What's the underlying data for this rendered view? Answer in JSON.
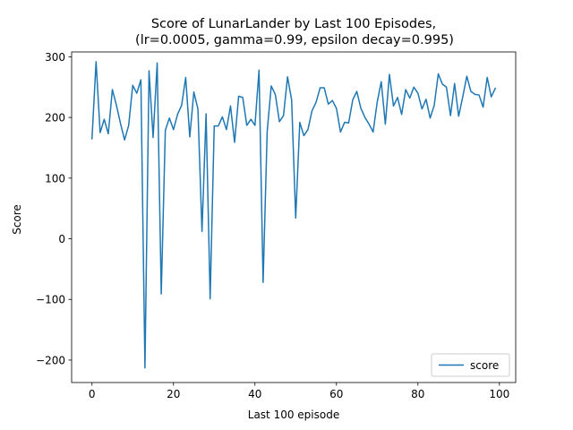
{
  "chart_data": {
    "type": "line",
    "title": "Score of LunarLander by Last 100 Episodes,",
    "subtitle": "(lr=0.0005, gamma=0.99, epsilon decay=0.995)",
    "xlabel": "Last 100 episode",
    "ylabel": "Score",
    "xlim": [
      -5,
      104
    ],
    "ylim": [
      -237,
      308
    ],
    "xticks": [
      0,
      20,
      40,
      60,
      80,
      100
    ],
    "xtick_labels": [
      "0",
      "20",
      "40",
      "60",
      "80",
      "100"
    ],
    "yticks": [
      -200,
      -100,
      0,
      100,
      200,
      300
    ],
    "ytick_labels": [
      "−200",
      "−100",
      "0",
      "100",
      "200",
      "300"
    ],
    "grid": false,
    "legend_position": "lower-right",
    "series": [
      {
        "name": "score",
        "color": "#1f77b4",
        "x": [
          0,
          1,
          2,
          3,
          4,
          5,
          6,
          7,
          8,
          9,
          10,
          11,
          12,
          13,
          14,
          15,
          16,
          17,
          18,
          19,
          20,
          21,
          22,
          23,
          24,
          25,
          26,
          27,
          28,
          29,
          30,
          31,
          32,
          33,
          34,
          35,
          36,
          37,
          38,
          39,
          40,
          41,
          42,
          43,
          44,
          45,
          46,
          47,
          48,
          49,
          50,
          51,
          52,
          53,
          54,
          55,
          56,
          57,
          58,
          59,
          60,
          61,
          62,
          63,
          64,
          65,
          66,
          67,
          68,
          69,
          70,
          71,
          72,
          73,
          74,
          75,
          76,
          77,
          78,
          79,
          80,
          81,
          82,
          83,
          84,
          85,
          86,
          87,
          88,
          89,
          90,
          91,
          92,
          93,
          94,
          95,
          96,
          97,
          98,
          99
        ],
        "values": [
          165,
          292,
          175,
          197,
          173,
          246,
          220,
          190,
          163,
          187,
          253,
          240,
          262,
          -213,
          277,
          167,
          290,
          -91,
          179,
          199,
          180,
          205,
          220,
          266,
          168,
          242,
          214,
          12,
          206,
          -99,
          186,
          186,
          201,
          180,
          219,
          159,
          235,
          233,
          187,
          197,
          187,
          278,
          -72,
          177,
          252,
          238,
          193,
          203,
          267,
          229,
          34,
          192,
          170,
          180,
          211,
          225,
          249,
          249,
          222,
          228,
          215,
          176,
          192,
          191,
          229,
          243,
          215,
          200,
          189,
          176,
          225,
          259,
          189,
          271,
          219,
          233,
          205,
          246,
          232,
          250,
          240,
          214,
          230,
          199,
          220,
          272,
          255,
          250,
          203,
          256,
          202,
          234,
          268,
          243,
          238,
          237,
          217,
          266,
          234,
          248
        ]
      }
    ]
  }
}
